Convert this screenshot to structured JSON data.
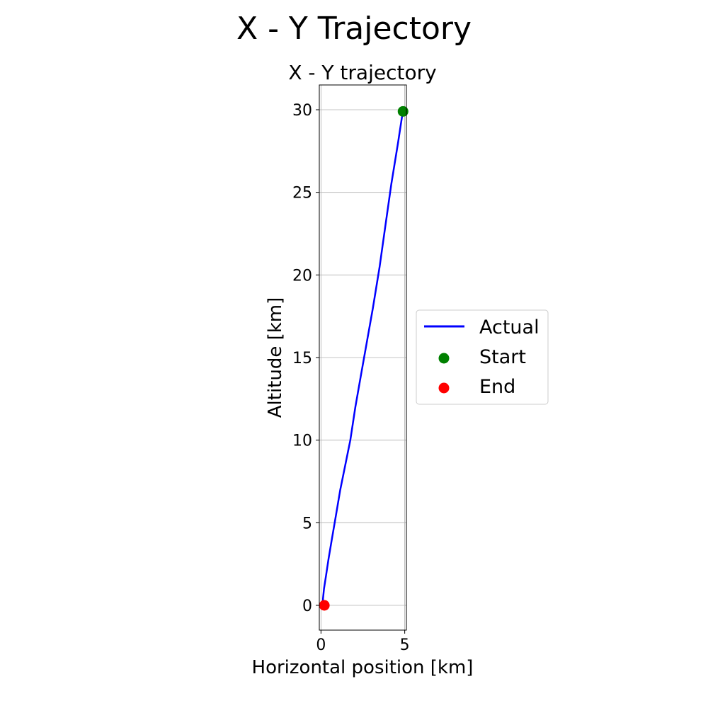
{
  "chart_data": {
    "type": "line",
    "suptitle": "X - Y Trajectory",
    "title": "X - Y trajectory",
    "xlabel": "Horizontal position [km]",
    "ylabel": "Altitude [km]",
    "xlim": [
      -0.1,
      5.1
    ],
    "ylim": [
      -1.5,
      31.5
    ],
    "xticks": [
      0,
      5
    ],
    "yticks": [
      0,
      5,
      10,
      15,
      20,
      25,
      30
    ],
    "grid": true,
    "legend_position": "outside-right",
    "series": [
      {
        "name": "Actual",
        "kind": "line",
        "color": "#0000ff",
        "x": [
          4.9,
          4.6,
          4.2,
          3.85,
          3.5,
          3.1,
          2.75,
          2.4,
          2.05,
          1.75,
          1.45,
          1.15,
          0.9,
          0.65,
          0.45,
          0.3,
          0.18,
          0.12,
          0.12
        ],
        "y": [
          30,
          28,
          25.5,
          23,
          20.5,
          18,
          16,
          14,
          12,
          10,
          8.5,
          7,
          5.5,
          4,
          2.8,
          1.8,
          1,
          0.4,
          0
        ]
      },
      {
        "name": "Start",
        "kind": "scatter",
        "color": "#008000",
        "x": [
          4.9
        ],
        "y": [
          29.9
        ]
      },
      {
        "name": "End",
        "kind": "scatter",
        "color": "#ff0000",
        "x": [
          0.2
        ],
        "y": [
          0
        ]
      }
    ]
  }
}
